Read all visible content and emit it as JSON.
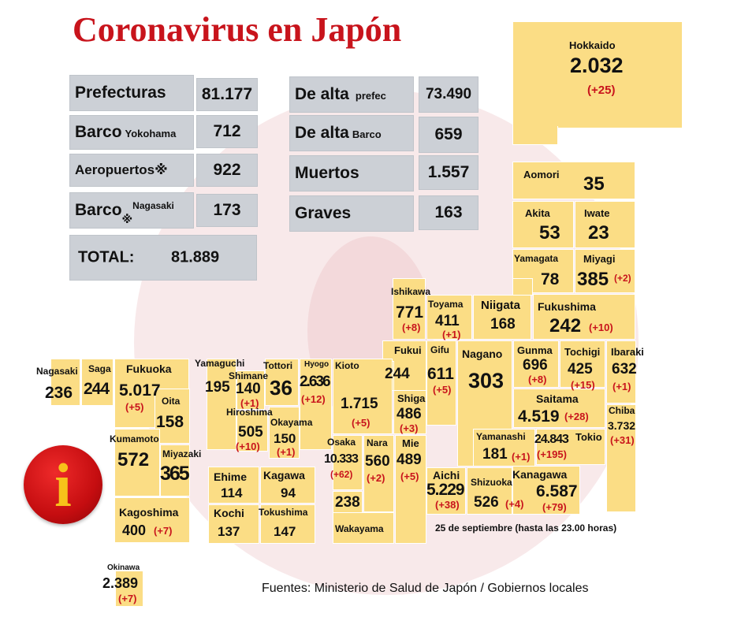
{
  "title": "Coronavirus en Japón",
  "summary": {
    "prefecturas": {
      "label": "Prefecturas",
      "value": "81.177"
    },
    "barco_yokohama": {
      "label": "Barco",
      "sub": "Yokohama",
      "value": "712"
    },
    "aeropuertos": {
      "label": "Aeropuertos",
      "mark": "※",
      "value": "922"
    },
    "barco_nagasaki": {
      "label": "Barco",
      "mark": "※",
      "sub": "Nagasaki",
      "value": "173"
    },
    "total": {
      "label": "TOTAL:",
      "value": "81.889"
    },
    "de_alta_prefec": {
      "label": "De alta",
      "sub": "prefec",
      "value": "73.490"
    },
    "de_alta_barco": {
      "label": "De alta",
      "sub": "Barco",
      "value": "659"
    },
    "muertos": {
      "label": "Muertos",
      "value": "1.557"
    },
    "graves": {
      "label": "Graves",
      "value": "163"
    }
  },
  "prefectures": {
    "hokkaido": {
      "name": "Hokkaido",
      "value": "2.032",
      "delta": "(+25)"
    },
    "aomori": {
      "name": "Aomori",
      "value": "35"
    },
    "akita": {
      "name": "Akita",
      "value": "53"
    },
    "iwate": {
      "name": "Iwate",
      "value": "23"
    },
    "yamagata": {
      "name": "Yamagata",
      "value": "78"
    },
    "miyagi": {
      "name": "Miyagi",
      "value": "385",
      "delta": "(+2)"
    },
    "ishikawa": {
      "name": "Ishikawa",
      "value": "771",
      "delta": "(+8)"
    },
    "toyama": {
      "name": "Toyama",
      "value": "411",
      "delta": "(+1)"
    },
    "niigata": {
      "name": "Niigata",
      "value": "168"
    },
    "fukushima": {
      "name": "Fukushima",
      "value": "242",
      "delta": "(+10)"
    },
    "fukui": {
      "name": "Fukui",
      "value": "244"
    },
    "gifu": {
      "name": "Gifu",
      "value": "611",
      "delta": "(+5)"
    },
    "nagano": {
      "name": "Nagano",
      "value": "303"
    },
    "gunma": {
      "name": "Gunma",
      "value": "696",
      "delta": "(+8)"
    },
    "tochigi": {
      "name": "Tochigi",
      "value": "425",
      "delta": "(+15)"
    },
    "ibaraki": {
      "name": "Ibaraki",
      "value": "632",
      "delta": "(+1)"
    },
    "saitama": {
      "name": "Saitama",
      "value": "4.519",
      "delta": "(+28)"
    },
    "chiba": {
      "name": "Chiba",
      "value": "3.732",
      "delta": "(+31)"
    },
    "tokio": {
      "name": "Tokio",
      "value": "24.843",
      "delta": "(+195)"
    },
    "yamanashi": {
      "name": "Yamanashi",
      "value": "181",
      "delta": "(+1)"
    },
    "kanagawa": {
      "name": "Kanagawa",
      "value": "6.587",
      "delta": "(+79)"
    },
    "shizuoka": {
      "name": "Shizuoka",
      "value": "526",
      "delta": "(+4)"
    },
    "aichi": {
      "name": "Aichi",
      "value": "5.229",
      "delta": "(+38)"
    },
    "mie": {
      "name": "Mie",
      "value": "489",
      "delta": "(+5)"
    },
    "shiga": {
      "name": "Shiga",
      "value": "486",
      "delta": "(+3)"
    },
    "kioto": {
      "name": "Kioto",
      "value": "1.715",
      "delta": "(+5)"
    },
    "nara": {
      "name": "Nara",
      "value": "560",
      "delta": "(+2)"
    },
    "osaka": {
      "name": "Osaka",
      "value": "10.333",
      "delta": "(+62)"
    },
    "hyogo": {
      "name": "Hyogo",
      "value": "2.636",
      "delta": "(+12)"
    },
    "wakayama": {
      "name": "Wakayama",
      "value": "238"
    },
    "tottori": {
      "name": "Tottori",
      "value": "36"
    },
    "shimane": {
      "name": "Shimane",
      "value": "140",
      "delta": "(+1)"
    },
    "okayama": {
      "name": "Okayama",
      "value": "150",
      "delta": "(+1)"
    },
    "hiroshima": {
      "name": "Hiroshima",
      "value": "505",
      "delta": "(+10)"
    },
    "yamaguchi": {
      "name": "Yamaguchi",
      "value": "195"
    },
    "ehime": {
      "name": "Ehime",
      "value": "114"
    },
    "kagawa": {
      "name": "Kagawa",
      "value": "94"
    },
    "kochi": {
      "name": "Kochi",
      "value": "137"
    },
    "tokushima": {
      "name": "Tokushima",
      "value": "147"
    },
    "fukuoka": {
      "name": "Fukuoka",
      "value": "5.017",
      "delta": "(+5)"
    },
    "saga": {
      "name": "Saga",
      "value": "244"
    },
    "nagasaki": {
      "name": "Nagasaki",
      "value": "236"
    },
    "oita": {
      "name": "Oita",
      "value": "158"
    },
    "kumamoto": {
      "name": "Kumamoto",
      "value": "572"
    },
    "miyazaki": {
      "name": "Miyazaki",
      "value": "365"
    },
    "kagoshima": {
      "name": "Kagoshima",
      "value": "400",
      "delta": "(+7)"
    },
    "okinawa": {
      "name": "Okinawa",
      "value": "2.389",
      "delta": "(+7)"
    }
  },
  "info_icon": {
    "glyph": "i",
    "icon": "info-icon",
    "color": "#c8141c"
  },
  "date_note": "25 de septiembre  (hasta las 23.00 horas)",
  "source": "Fuentes: Ministerio de Salud de Japón / Gobiernos locales",
  "colors": {
    "title": "#c8141c",
    "prefecture_fill": "#fbdd85",
    "summary_fill": "#ccd0d6",
    "delta": "#c8141c"
  }
}
